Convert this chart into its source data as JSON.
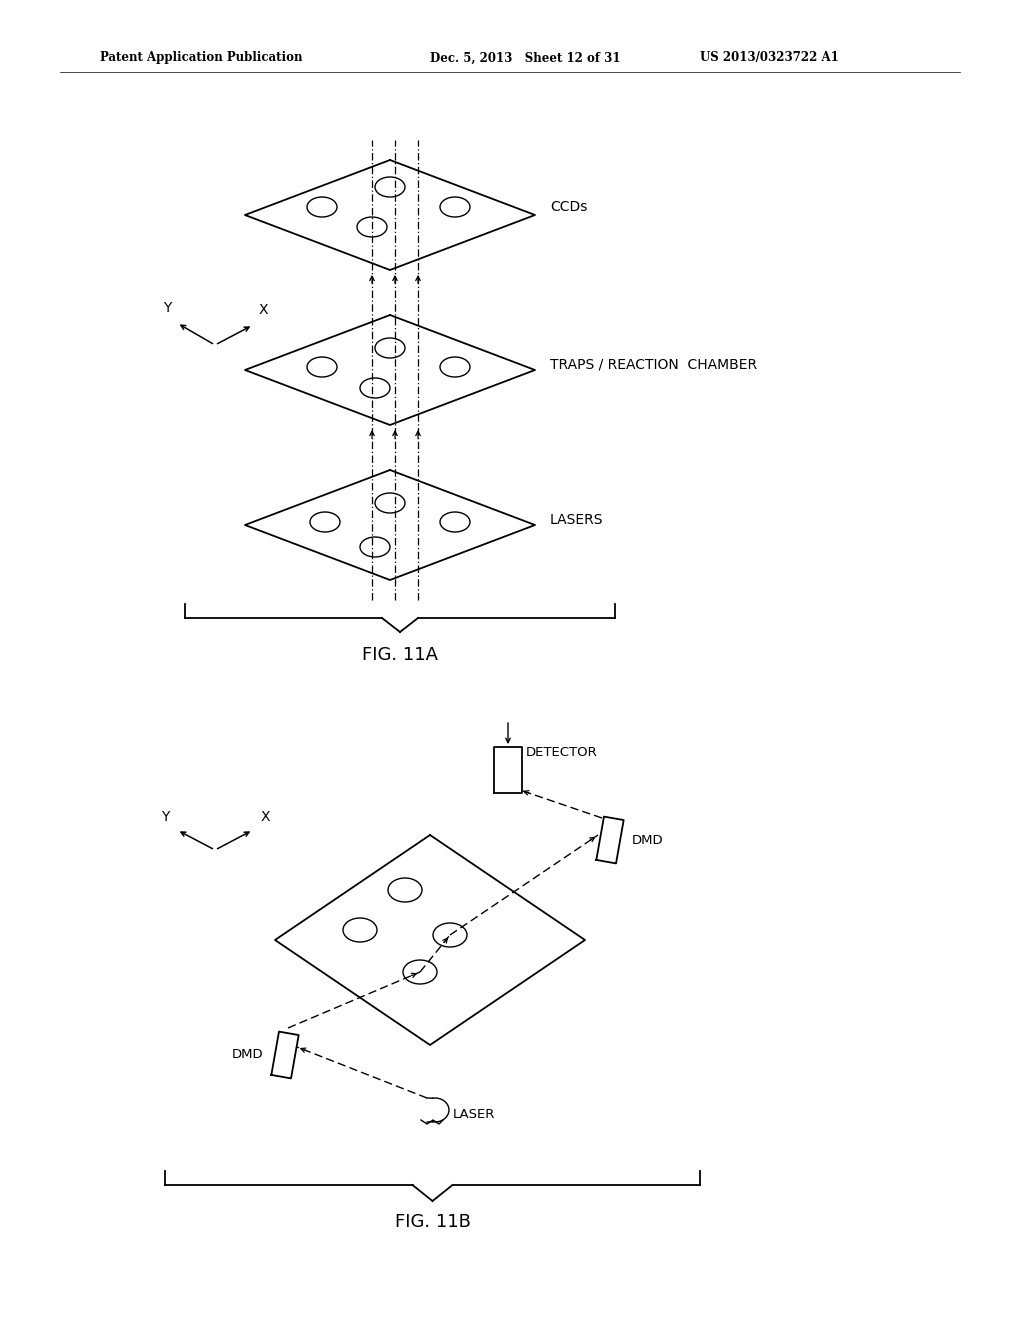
{
  "bg_color": "#ffffff",
  "text_color": "#000000",
  "header_left": "Patent Application Publication",
  "header_mid": "Dec. 5, 2013   Sheet 12 of 31",
  "header_right": "US 2013/0323722 A1",
  "fig11a_label": "FIG. 11A",
  "fig11b_label": "FIG. 11B",
  "label_ccds": "CCDs",
  "label_traps": "TRAPS / REACTION  CHAMBER",
  "label_lasers": "LASERS",
  "label_detector": "DETECTOR",
  "label_dmd1": "DMD",
  "label_dmd2": "DMD",
  "label_laser_b": "LASER"
}
